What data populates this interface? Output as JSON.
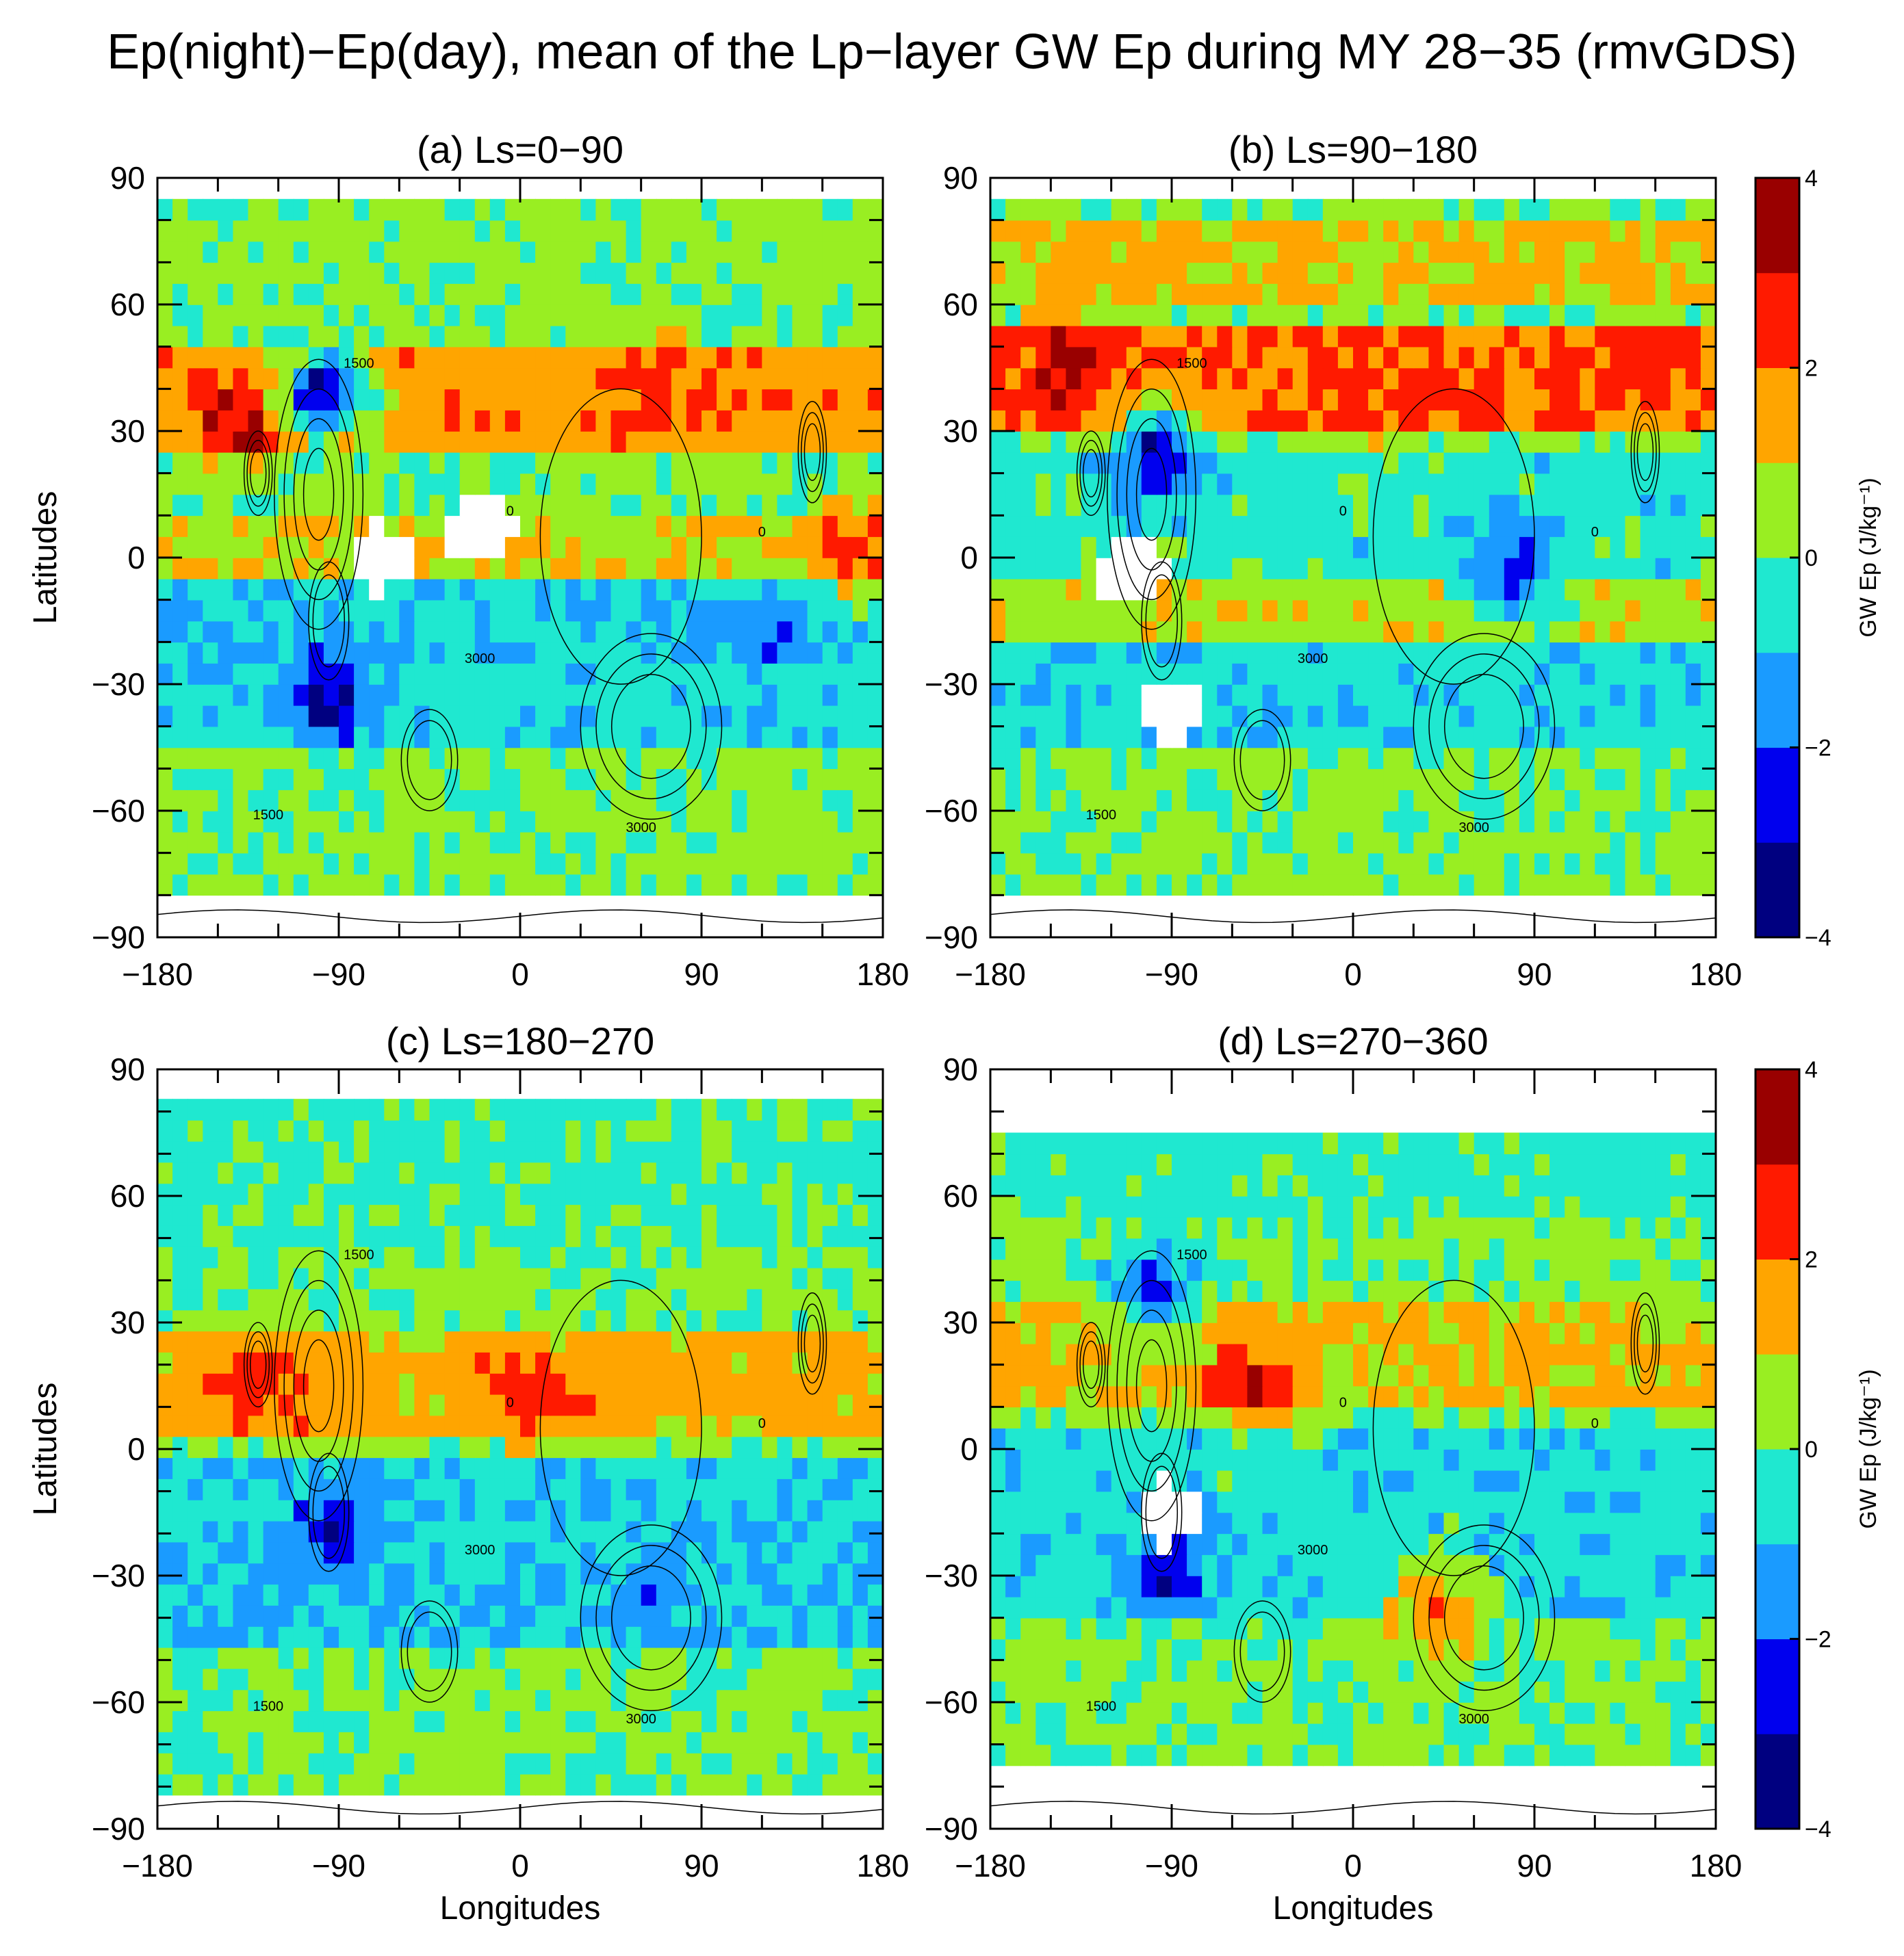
{
  "title": "Ep(night)−Ep(day), mean of the Lp−layer GW Ep during MY 28−35 (rmvGDS)",
  "colorbar": {
    "label": "GW Ep (J/kg⁻¹)",
    "ticks": [
      "4",
      "2",
      "0",
      "−2",
      "−4"
    ],
    "levels": [
      -4,
      -3,
      -2,
      -1,
      0,
      1,
      2,
      3,
      4
    ],
    "colors": [
      "#000080",
      "#0000ee",
      "#1a9bff",
      "#1fe8d0",
      "#99ee22",
      "#ffa500",
      "#ff1a00",
      "#990000"
    ]
  },
  "colors": {
    "missing": "#ffffff",
    "contour": "#000000"
  },
  "chart_data": [
    {
      "type": "heatmap",
      "title": "(a) Ls=0−90",
      "xlabel": "",
      "ylabel": "Latitudes",
      "xlim": [
        -180,
        180
      ],
      "ylim": [
        -90,
        90
      ],
      "xticks": [
        "−180",
        "−90",
        "0",
        "90",
        "180"
      ],
      "yticks": [
        "90",
        "60",
        "30",
        "0",
        "−30",
        "−60",
        "−90"
      ],
      "lat_coverage": [
        -80,
        82
      ],
      "contour_labels": [
        "1500",
        "3000",
        "0"
      ],
      "bands": [
        {
          "lat": [
            60,
            82
          ],
          "value": 0.4
        },
        {
          "lat": [
            25,
            50
          ],
          "value": 1.6
        },
        {
          "lat": [
            -10,
            10
          ],
          "value": 0.9
        },
        {
          "lat": [
            -25,
            -5
          ],
          "value": -0.8
        },
        {
          "lat": [
            -45,
            -25
          ],
          "value": -0.6
        },
        {
          "lat": [
            -80,
            -45
          ],
          "value": 0.2
        }
      ],
      "features": [
        {
          "lon": -140,
          "lat": 32,
          "value": 3.3
        },
        {
          "lon": -97,
          "lat": 39,
          "value": -3.2
        },
        {
          "lon": -95,
          "lat": -33,
          "value": -3.4
        },
        {
          "lon": -70,
          "lat": 0,
          "value": null
        },
        {
          "lon": -20,
          "lat": 7,
          "value": null
        },
        {
          "lon": 125,
          "lat": -18,
          "value": -2.4
        },
        {
          "lon": 65,
          "lat": 40,
          "value": 2.6
        },
        {
          "lon": 170,
          "lat": 0,
          "value": 2.5
        }
      ]
    },
    {
      "type": "heatmap",
      "title": "(b) Ls=90−180",
      "xlabel": "",
      "ylabel": "",
      "xlim": [
        -180,
        180
      ],
      "ylim": [
        -90,
        90
      ],
      "xticks": [
        "−180",
        "−90",
        "0",
        "90",
        "180"
      ],
      "yticks": [
        "90",
        "60",
        "30",
        "0",
        "−30",
        "−60",
        "−90"
      ],
      "lat_coverage": [
        -80,
        82
      ],
      "contour_labels": [
        "1500",
        "3000",
        "0"
      ],
      "bands": [
        {
          "lat": [
            60,
            82
          ],
          "value": 1.2
        },
        {
          "lat": [
            30,
            55
          ],
          "value": 2.0
        },
        {
          "lat": [
            -5,
            25
          ],
          "value": -0.5
        },
        {
          "lat": [
            -20,
            -5
          ],
          "value": 0.6
        },
        {
          "lat": [
            -45,
            -20
          ],
          "value": -0.7
        },
        {
          "lat": [
            -80,
            -45
          ],
          "value": 0.2
        }
      ],
      "features": [
        {
          "lon": -140,
          "lat": 45,
          "value": 3.3
        },
        {
          "lon": -97,
          "lat": 25,
          "value": -2.8
        },
        {
          "lon": -90,
          "lat": -36,
          "value": null
        },
        {
          "lon": -110,
          "lat": -3,
          "value": null
        },
        {
          "lon": 80,
          "lat": -5,
          "value": -2.3
        },
        {
          "lon": 140,
          "lat": 45,
          "value": 2.6
        },
        {
          "lon": 30,
          "lat": 40,
          "value": 2.4
        }
      ]
    },
    {
      "type": "heatmap",
      "title": "(c) Ls=180−270",
      "xlabel": "Longitudes",
      "ylabel": "Latitudes",
      "xlim": [
        -180,
        180
      ],
      "ylim": [
        -90,
        90
      ],
      "xticks": [
        "−180",
        "−90",
        "0",
        "90",
        "180"
      ],
      "yticks": [
        "90",
        "60",
        "30",
        "0",
        "−30",
        "−60",
        "−90"
      ],
      "lat_coverage": [
        -82,
        82
      ],
      "contour_labels": [
        "1500",
        "3000",
        "0"
      ],
      "bands": [
        {
          "lat": [
            50,
            82
          ],
          "value": -0.3
        },
        {
          "lat": [
            5,
            30
          ],
          "value": 1.4
        },
        {
          "lat": [
            -25,
            0
          ],
          "value": -0.8
        },
        {
          "lat": [
            -45,
            -25
          ],
          "value": -1.1
        },
        {
          "lat": [
            -82,
            -45
          ],
          "value": 0.1
        }
      ],
      "features": [
        {
          "lon": -95,
          "lat": -20,
          "value": -2.8
        },
        {
          "lon": -130,
          "lat": 15,
          "value": 2.6
        },
        {
          "lon": 60,
          "lat": -35,
          "value": -1.6
        },
        {
          "lon": 5,
          "lat": 12,
          "value": 2.4
        }
      ]
    },
    {
      "type": "heatmap",
      "title": "(d) Ls=270−360",
      "xlabel": "Longitudes",
      "ylabel": "",
      "xlim": [
        -180,
        180
      ],
      "ylim": [
        -90,
        90
      ],
      "xticks": [
        "−180",
        "−90",
        "0",
        "90",
        "180"
      ],
      "yticks": [
        "90",
        "60",
        "30",
        "0",
        "−30",
        "−60",
        "−90"
      ],
      "lat_coverage": [
        -75,
        75
      ],
      "contour_labels": [
        "1500",
        "3000",
        "0"
      ],
      "bands": [
        {
          "lat": [
            55,
            75
          ],
          "value": -0.4
        },
        {
          "lat": [
            10,
            35
          ],
          "value": 1.1
        },
        {
          "lat": [
            -40,
            5
          ],
          "value": -0.6
        },
        {
          "lat": [
            -75,
            -45
          ],
          "value": 0.2
        }
      ],
      "features": [
        {
          "lon": -92,
          "lat": -15,
          "value": null
        },
        {
          "lon": -90,
          "lat": -30,
          "value": -2.6
        },
        {
          "lon": -50,
          "lat": 15,
          "value": 3.0
        },
        {
          "lon": -100,
          "lat": 40,
          "value": -2.4
        },
        {
          "lon": 40,
          "lat": -38,
          "value": 2.2
        }
      ]
    }
  ]
}
